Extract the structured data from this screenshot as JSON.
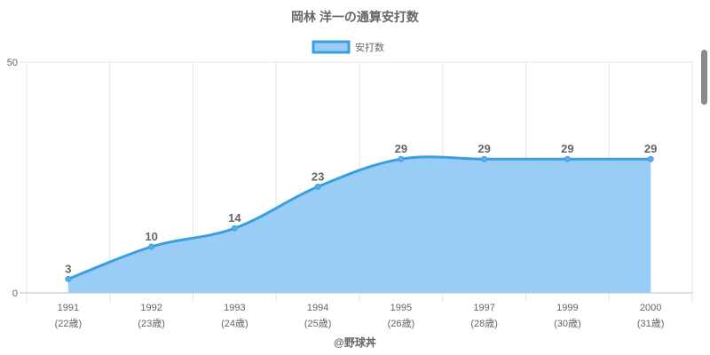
{
  "chart_data": {
    "type": "area",
    "title": "岡林 洋一の通算安打数",
    "legend": {
      "label": "安打数",
      "position": "top"
    },
    "categories": [
      "1991",
      "1992",
      "1993",
      "1994",
      "1995",
      "1997",
      "1999",
      "2000"
    ],
    "sub_labels": [
      "(22歳)",
      "(23歳)",
      "(24歳)",
      "(25歳)",
      "(26歳)",
      "(28歳)",
      "(30歳)",
      "(31歳)"
    ],
    "series": [
      {
        "name": "安打数",
        "values": [
          3,
          10,
          14,
          23,
          29,
          29,
          29,
          29
        ]
      }
    ],
    "ylim": [
      0,
      50
    ],
    "y_ticks": [
      "0",
      "50"
    ],
    "grid": true,
    "colors": {
      "line": "#3b9ee0",
      "fill": "#99cdf5",
      "grid": "#e6e6e6",
      "text": "#666666"
    }
  },
  "footer": "@野球丼"
}
